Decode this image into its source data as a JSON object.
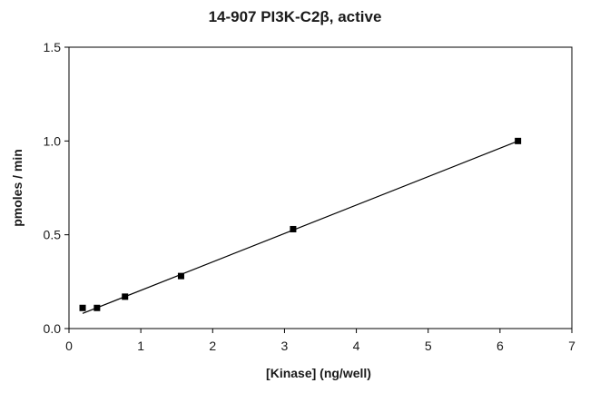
{
  "chart_data": {
    "type": "scatter",
    "title": "14-907 PI3K-C2β, active",
    "xlabel": "[Kinase] (ng/well)",
    "ylabel": "pmoles / min",
    "xlim": [
      0,
      7
    ],
    "ylim": [
      0,
      1.5
    ],
    "x_ticks": [
      "0",
      "1",
      "2",
      "3",
      "4",
      "5",
      "6",
      "7"
    ],
    "y_ticks": [
      "0.0",
      "0.5",
      "1.0",
      "1.5"
    ],
    "grid": false,
    "legend": "none",
    "series": [
      {
        "points": [
          {
            "x": 0.19,
            "y": 0.11
          },
          {
            "x": 0.39,
            "y": 0.11
          },
          {
            "x": 0.78,
            "y": 0.17
          },
          {
            "x": 1.56,
            "y": 0.28
          },
          {
            "x": 3.12,
            "y": 0.53
          },
          {
            "x": 6.25,
            "y": 1.0
          }
        ]
      }
    ],
    "trendline": {
      "type": "linear",
      "x_range": [
        0.19,
        6.25
      ],
      "slope": 0.1516,
      "intercept": 0.052
    }
  }
}
